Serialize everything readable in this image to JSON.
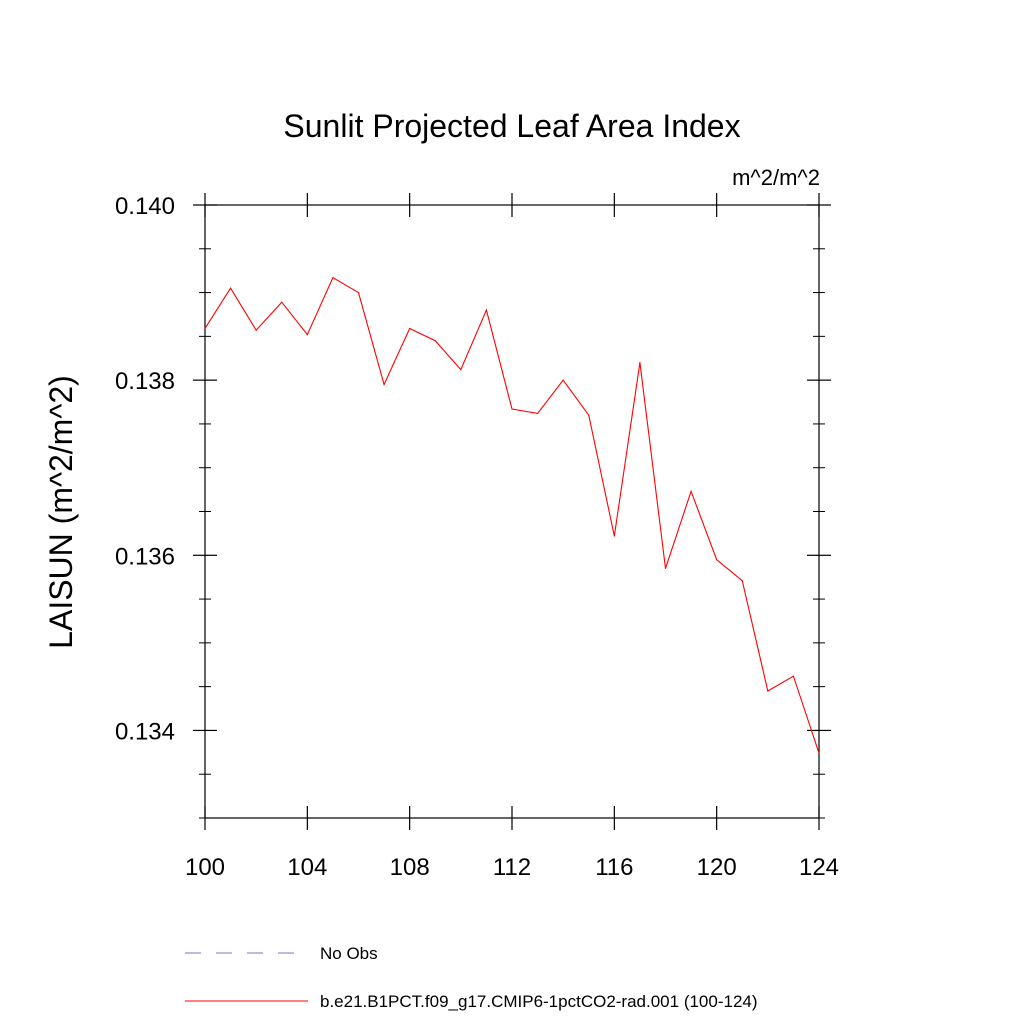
{
  "chart_data": {
    "type": "line",
    "title": "Sunlit Projected Leaf Area Index",
    "units_label": "m^2/m^2",
    "ylabel": "LAISUN  (m^2/m^2)",
    "xlabel": "",
    "xlim": [
      100,
      124
    ],
    "ylim": [
      0.133,
      0.14
    ],
    "x_ticks": [
      100,
      104,
      108,
      112,
      116,
      120,
      124
    ],
    "x_tick_labels": [
      "100",
      "104",
      "108",
      "112",
      "116",
      "120",
      "124"
    ],
    "y_ticks": [
      0.134,
      0.136,
      0.138,
      0.14
    ],
    "y_tick_labels": [
      "0.134",
      "0.136",
      "0.138",
      "0.140"
    ],
    "grid": false,
    "legend_position": "bottom",
    "series": [
      {
        "name": "b.e21.B1PCT.f09_g17.CMIP6-1pctCO2-rad.001 (100-124)",
        "color": "#ff0000",
        "style": "solid",
        "x": [
          100,
          101,
          102,
          103,
          104,
          105,
          106,
          107,
          108,
          109,
          110,
          111,
          112,
          113,
          114,
          115,
          116,
          117,
          118,
          119,
          120,
          121,
          122,
          123,
          124
        ],
        "y": [
          0.13859,
          0.13905,
          0.13857,
          0.13889,
          0.13852,
          0.13917,
          0.139,
          0.13795,
          0.13859,
          0.13845,
          0.13812,
          0.1388,
          0.13767,
          0.13762,
          0.138,
          0.1376,
          0.13622,
          0.1382,
          0.13585,
          0.13673,
          0.13595,
          0.13571,
          0.13445,
          0.13462,
          0.13374
        ]
      },
      {
        "name": "No Obs",
        "color": "#7b6fc9",
        "style": "dashed",
        "x": [],
        "y": []
      }
    ]
  }
}
